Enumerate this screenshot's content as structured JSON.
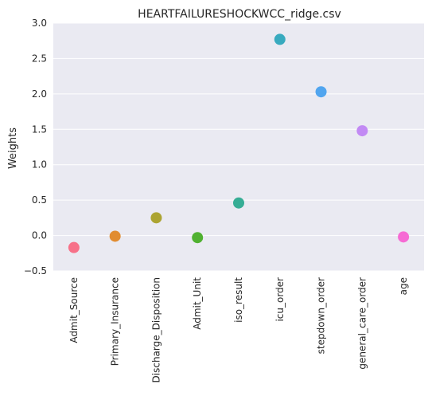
{
  "chart_data": {
    "type": "scatter",
    "title": "HEARTFAILURESHOCKWCC_ridge.csv",
    "xlabel": "",
    "ylabel": "Weights",
    "ylim": [
      -0.5,
      3.0
    ],
    "yticks": [
      -0.5,
      0.0,
      0.5,
      1.0,
      1.5,
      2.0,
      2.5,
      3.0
    ],
    "ytick_labels": [
      "−0.5",
      "0.0",
      "0.5",
      "1.0",
      "1.5",
      "2.0",
      "2.5",
      "3.0"
    ],
    "grid": true,
    "categories": [
      "Admit_Source",
      "Primary_Insurance",
      "Discharge_Disposition",
      "Admit_Unit",
      "iso_result",
      "icu_order",
      "stepdown_order",
      "general_care_order",
      "age"
    ],
    "values": [
      -0.17,
      -0.01,
      0.25,
      -0.03,
      0.46,
      2.77,
      2.03,
      1.48,
      -0.02
    ],
    "colors": [
      "#f77189",
      "#e18c31",
      "#aca432",
      "#50b131",
      "#36ad95",
      "#38aabf",
      "#51a5ef",
      "#c28af4",
      "#f66bd4"
    ]
  }
}
